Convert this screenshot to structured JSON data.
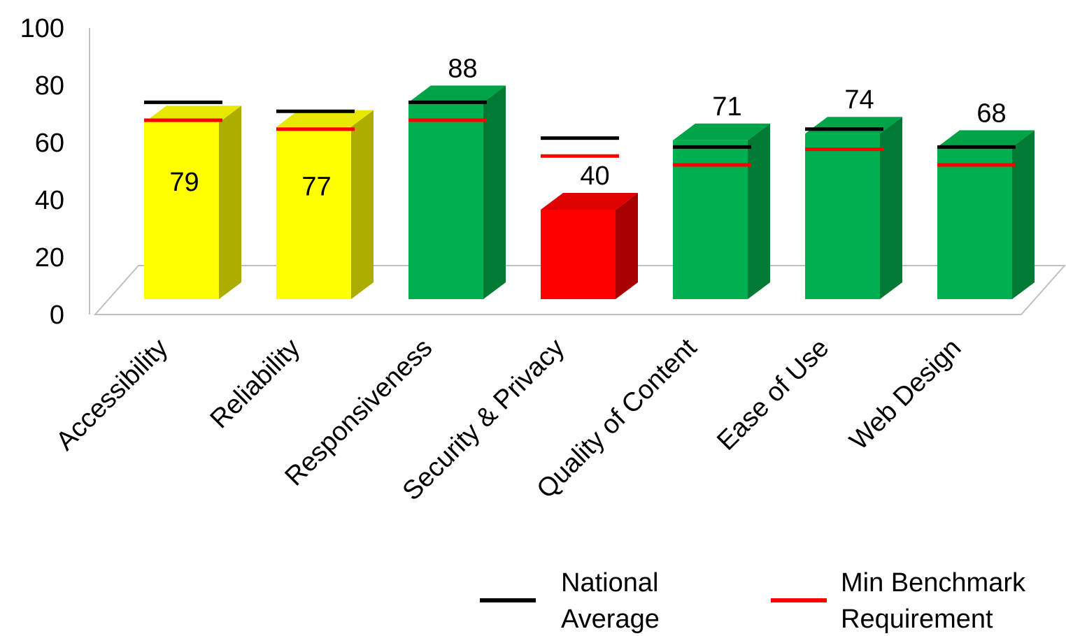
{
  "chart_data": {
    "type": "bar",
    "title": "",
    "xlabel": "",
    "ylabel": "",
    "ylim": [
      0,
      100
    ],
    "yticks": [
      "0",
      "20",
      "40",
      "60",
      "80",
      "100"
    ],
    "categories": [
      "Accessibility",
      "Reliability",
      "Responsiveness",
      "Security & Privacy",
      "Quality of Content",
      "Ease of Use",
      "Web Design"
    ],
    "values": [
      79,
      77,
      88,
      40,
      71,
      74,
      68
    ],
    "data_labels": [
      "79",
      "77",
      "88",
      "40",
      "71",
      "74",
      "68"
    ],
    "bar_status_colors": [
      "#ffff00",
      "#ffff00",
      "#00b050",
      "#ff0000",
      "#00b050",
      "#00b050",
      "#00b050"
    ],
    "reference_series": [
      {
        "name": "National Average",
        "color": "#000000",
        "values": [
          88,
          84,
          88,
          72,
          68,
          76,
          68
        ]
      },
      {
        "name": "Min Benchmark Requirement",
        "color": "#ff0000",
        "values": [
          80,
          76,
          80,
          64,
          60,
          67,
          60
        ]
      }
    ],
    "legend": {
      "placement": "bottom-right",
      "items": [
        {
          "line1": "National",
          "line2": "Average",
          "color": "#000000"
        },
        {
          "line1": "Min Benchmark",
          "line2": "Requirement",
          "color": "#ff0000"
        }
      ]
    },
    "grid": false,
    "style": "3d"
  }
}
